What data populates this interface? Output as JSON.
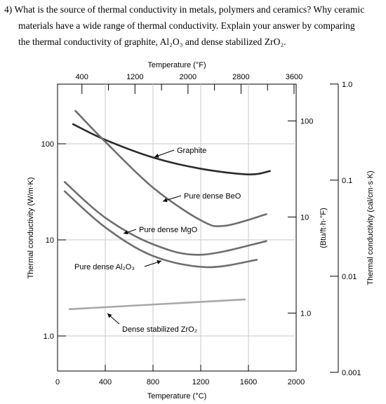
{
  "question": {
    "line1": "4)  What is the source of thermal conductivity in metals, polymers and ceramics? Why ceramic",
    "line2": "materials have a wide range of thermal conductivity. Explain your answer by comparing",
    "line3": "the thermal conductivity of graphite, Al₂O₃ and dense stabilized ZrO₂."
  },
  "chart_data": {
    "type": "line",
    "title": "",
    "xlabel": "Temperature (°C)",
    "xlabel_top": "Temperature (°F)",
    "ylabel": "Thermal conductivity (W/m·K)",
    "ylabel_right1": "(Btu/ft·h·°F)",
    "ylabel_right2": "Thermal conductivity (cal/cm·s·K)",
    "xlim": [
      0,
      2000
    ],
    "ylim": [
      0.7,
      400
    ],
    "yscale": "log",
    "grid": true,
    "x_ticks": [
      "0",
      "400",
      "800",
      "1200",
      "1600",
      "2000"
    ],
    "x_top_ticks": [
      "400",
      "1200",
      "2000",
      "2800",
      "3600"
    ],
    "y_ticks": [
      "1.0",
      "10",
      "100"
    ],
    "y_right1_ticks": [
      "1.0",
      "10",
      "100"
    ],
    "y_right2_ticks": [
      "0.001",
      "0.01",
      "0.1",
      "1.0"
    ],
    "series": [
      {
        "name": "Graphite",
        "color": "#2b2b2b",
        "x": [
          130,
          400,
          800,
          1200,
          1600,
          1780
        ],
        "y": [
          160,
          110,
          72,
          55,
          48,
          52
        ]
      },
      {
        "name": "Pure dense BeO",
        "color": "#6e6e6e",
        "x": [
          150,
          400,
          800,
          1200,
          1400,
          1750
        ],
        "y": [
          220,
          105,
          35,
          16,
          14,
          18.5
        ]
      },
      {
        "name": "Pure dense MgO",
        "color": "#6e6e6e",
        "x": [
          60,
          400,
          800,
          1200,
          1750
        ],
        "y": [
          40,
          17,
          9,
          7,
          9.7
        ]
      },
      {
        "name": "Pure dense Al₂O₃",
        "color": "#6e6e6e",
        "x": [
          60,
          400,
          800,
          1250,
          1670
        ],
        "y": [
          32,
          13.5,
          6.8,
          5.2,
          6.2
        ]
      },
      {
        "name": "Dense stabilized ZrO₂",
        "color": "#a8a8a8",
        "x": [
          100,
          1570
        ],
        "y": [
          1.9,
          2.4
        ]
      }
    ]
  }
}
